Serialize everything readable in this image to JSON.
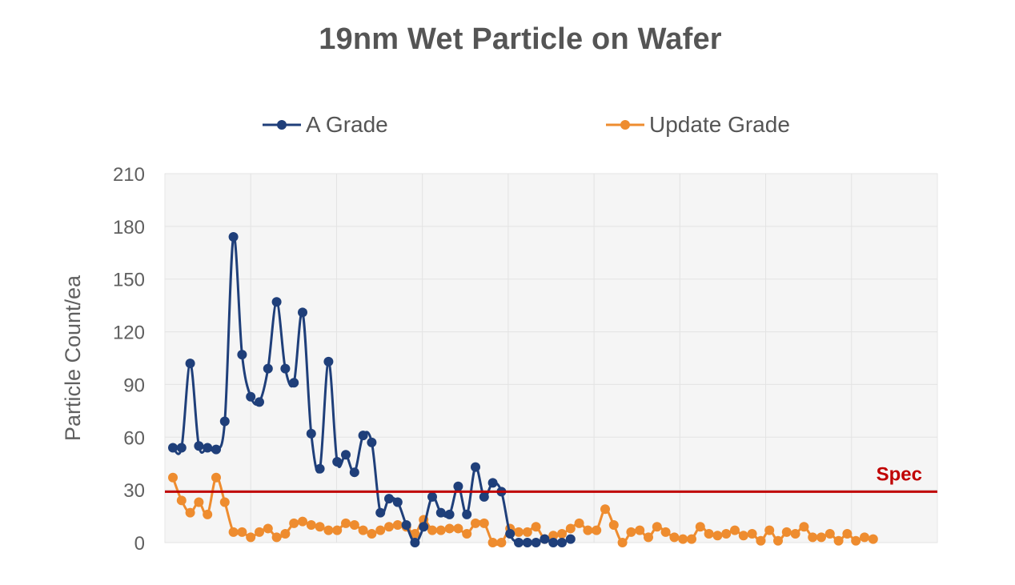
{
  "chart_data": {
    "type": "line",
    "title": "19nm Wet Particle on Wafer",
    "xlabel": "",
    "ylabel": "Particle Count/ea",
    "ylim": [
      0,
      210
    ],
    "yticks": [
      0,
      30,
      60,
      90,
      120,
      150,
      180,
      210
    ],
    "grid": true,
    "legend_position": "top",
    "spec": {
      "label": "Spec",
      "value": 29,
      "color": "#c00000"
    },
    "series": [
      {
        "name": "A Grade",
        "color": "#1f3f7a",
        "values": [
          54,
          54,
          102,
          55,
          54,
          53,
          69,
          174,
          107,
          83,
          80,
          99,
          137,
          99,
          91,
          131,
          62,
          42,
          103,
          46,
          50,
          40,
          61,
          57,
          17,
          25,
          23,
          10,
          0,
          9,
          26,
          17,
          16,
          32,
          16,
          43,
          26,
          34,
          29,
          5,
          0,
          0,
          0,
          2,
          0,
          0,
          2
        ]
      },
      {
        "name": "Update Grade",
        "color": "#ee8c2f",
        "values": [
          37,
          24,
          17,
          23,
          16,
          37,
          23,
          6,
          6,
          3,
          6,
          8,
          3,
          5,
          11,
          12,
          10,
          9,
          7,
          7,
          11,
          10,
          7,
          5,
          7,
          9,
          10,
          9,
          5,
          13,
          7,
          7,
          8,
          8,
          5,
          11,
          11,
          0,
          0,
          8,
          6,
          6,
          9,
          2,
          4,
          5,
          8,
          11,
          7,
          7,
          19,
          10,
          0,
          6,
          7,
          3,
          9,
          6,
          3,
          2,
          2,
          9,
          5,
          4,
          5,
          7,
          4,
          5,
          1,
          7,
          1,
          6,
          5,
          9,
          3,
          3,
          5,
          1,
          5,
          1,
          3,
          2
        ]
      }
    ]
  }
}
